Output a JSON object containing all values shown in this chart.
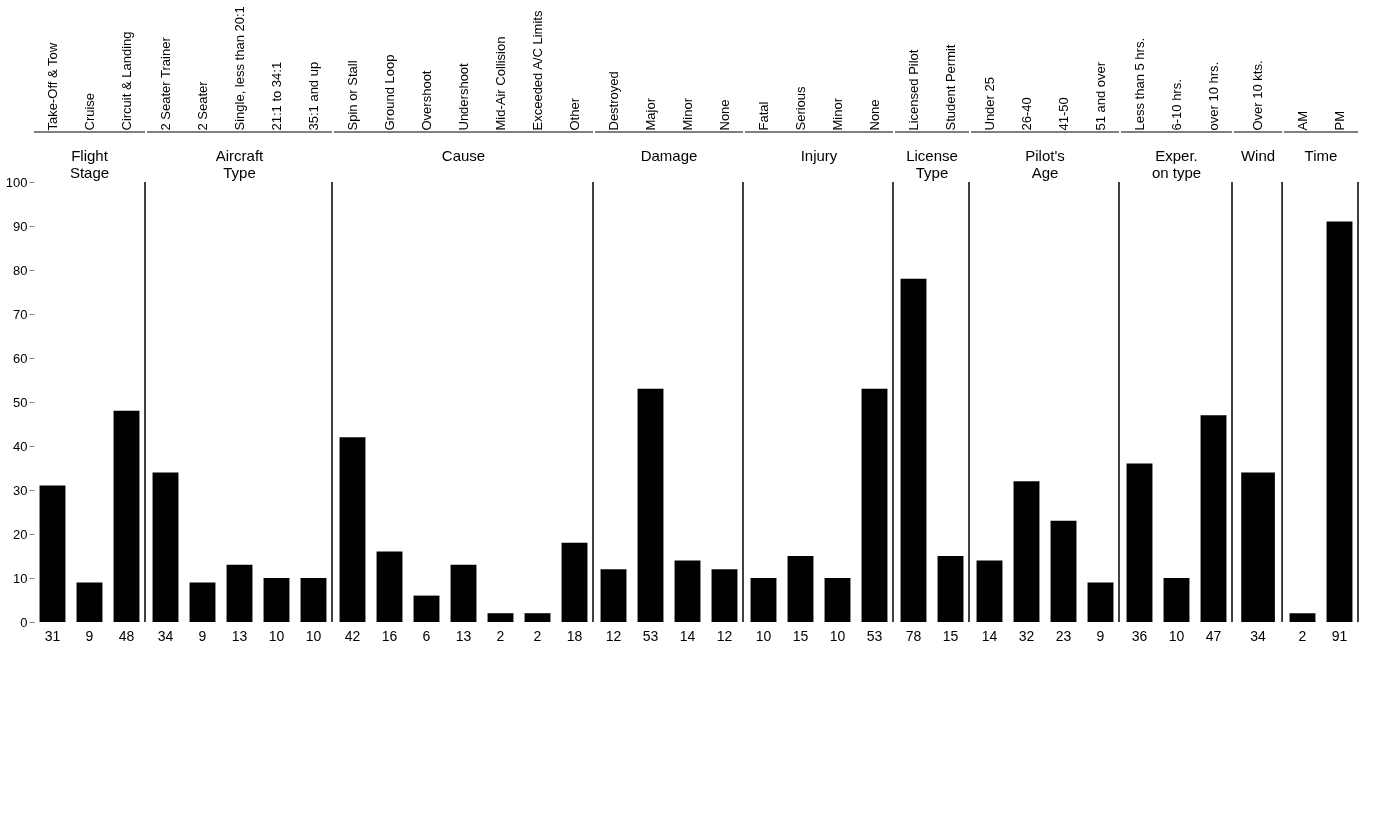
{
  "chart_data": [
    {
      "type": "bar",
      "title": "Flight Stage",
      "categories": [
        "Take-Off & Tow",
        "Cruise",
        "Circuit & Landing"
      ],
      "values": [
        31,
        9,
        48
      ],
      "color": "#000000",
      "data_labels": true,
      "ylim": [
        0,
        100
      ],
      "yticks": [
        0,
        10,
        20,
        30,
        40,
        50,
        60,
        70,
        80,
        90,
        100
      ],
      "grid": false
    },
    {
      "type": "bar",
      "title": "Aircraft Type",
      "categories": [
        "2 Seater Trainer",
        "2 Seater",
        "Single, less than 20:1",
        "21:1 to 34:1",
        "35:1 and up"
      ],
      "values": [
        34,
        9,
        13,
        10,
        10
      ],
      "color": "#000000",
      "data_labels": true,
      "ylim": [
        0,
        100
      ],
      "yticks": [
        0,
        10,
        20,
        30,
        40,
        50,
        60,
        70,
        80,
        90,
        100
      ],
      "tick_labels": "x",
      "grid": false
    },
    {
      "type": "bar",
      "title": "Cause",
      "categories": [
        "Spin or Stall",
        "Ground Loop",
        "Overshoot",
        "Undershoot",
        "Mid-Air Collision",
        "Exceeded A/C Limits",
        "Other"
      ],
      "values": [
        42,
        16,
        6,
        13,
        2,
        2,
        18
      ],
      "color": "#000000",
      "data_labels": true,
      "ylim": [
        0,
        100
      ],
      "yticks": [
        0,
        10,
        20,
        30,
        40,
        50,
        60,
        70,
        80,
        90,
        100
      ],
      "tick_labels": "x",
      "grid": false
    },
    {
      "type": "bar",
      "title": "Damage",
      "categories": [
        "Destroyed",
        "Major",
        "Minor",
        "None"
      ],
      "values": [
        12,
        53,
        14,
        12
      ],
      "color": "#000000",
      "data_labels": true,
      "ylim": [
        0,
        100
      ],
      "yticks": [
        0,
        10,
        20,
        30,
        40,
        50,
        60,
        70,
        80,
        90,
        100
      ],
      "tick_labels": "x",
      "grid": false
    },
    {
      "type": "bar",
      "title": "Injury",
      "categories": [
        "Fatal",
        "Serious",
        "Minor",
        "None"
      ],
      "values": [
        10,
        15,
        10,
        53
      ],
      "color": "#000000",
      "data_labels": true,
      "ylim": [
        0,
        100
      ],
      "yticks": [
        0,
        10,
        20,
        30,
        40,
        50,
        60,
        70,
        80,
        90,
        100
      ],
      "tick_labels": "x",
      "grid": false
    },
    {
      "type": "bar",
      "title": "License Type",
      "categories": [
        "Licensed Pilot",
        "Student Permit"
      ],
      "values": [
        78,
        15
      ],
      "color": "#000000",
      "data_labels": true,
      "ylim": [
        0,
        100
      ],
      "yticks": [
        0,
        10,
        20,
        30,
        40,
        50,
        60,
        70,
        80,
        90,
        100
      ],
      "tick_labels": "x",
      "grid": false
    },
    {
      "type": "bar",
      "title": "Pilot's Age",
      "categories": [
        "Under 25",
        "26-40",
        "41-50",
        "51 and over"
      ],
      "values": [
        14,
        32,
        23,
        9
      ],
      "color": "#000000",
      "data_labels": true,
      "ylim": [
        0,
        100
      ],
      "yticks": [
        0,
        10,
        20,
        30,
        40,
        50,
        60,
        70,
        80,
        90,
        100
      ],
      "tick_labels": "x",
      "grid": false
    },
    {
      "type": "bar",
      "title": "Exper. on type",
      "categories": [
        "Less than 5 hrs.",
        "6-10 hrs.",
        "over 10 hrs."
      ],
      "values": [
        36,
        10,
        47
      ],
      "color": "#000000",
      "data_labels": true,
      "ylim": [
        0,
        100
      ],
      "yticks": [
        0,
        10,
        20,
        30,
        40,
        50,
        60,
        70,
        80,
        90,
        100
      ],
      "tick_labels": "x",
      "grid": false
    },
    {
      "type": "bar",
      "title": "Wind",
      "categories": [
        "Over 10 kts."
      ],
      "values": [
        34
      ],
      "color": "#000000",
      "data_labels": true,
      "ylim": [
        0,
        100
      ],
      "yticks": [
        0,
        10,
        20,
        30,
        40,
        50,
        60,
        70,
        80,
        90,
        100
      ],
      "tick_labels": "x",
      "grid": false
    },
    {
      "type": "bar",
      "title": "Time",
      "categories": [
        "AM",
        "PM"
      ],
      "values": [
        2,
        91
      ],
      "color": "#000000",
      "data_labels": true,
      "ylim": [
        0,
        100
      ],
      "yticks": [
        0,
        10,
        20,
        30,
        40,
        50,
        60,
        70,
        80,
        90,
        100
      ],
      "tick_labels": "x",
      "grid": false
    }
  ]
}
